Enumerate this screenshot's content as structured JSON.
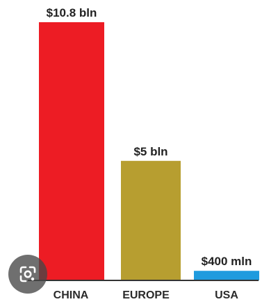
{
  "chart_data": {
    "type": "bar",
    "categories": [
      "CHINA",
      "EUROPE",
      "USA"
    ],
    "values": [
      10.8,
      5,
      0.4
    ],
    "value_labels": [
      "$10.8 bln",
      "$5 bln",
      "$400 mln"
    ],
    "unit": "USD billion",
    "ylim": [
      0,
      10.8
    ],
    "grid": false,
    "legend": "none",
    "colors": [
      "#ED1C24",
      "#B79E30",
      "#1F9BDE"
    ]
  },
  "overlay": {
    "icon": "google-lens-icon"
  },
  "colors": {
    "axis": "#333333",
    "lens_button_bg": "#464646"
  }
}
